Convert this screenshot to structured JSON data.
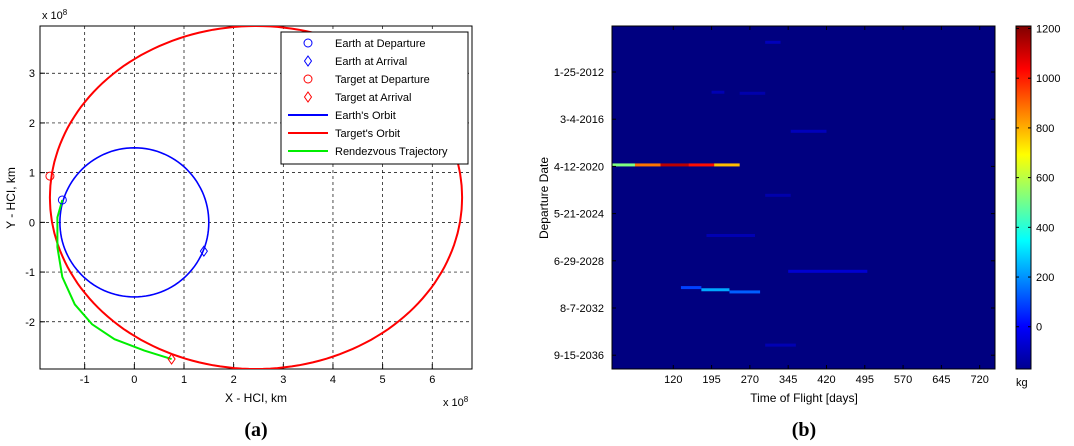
{
  "chart_data": [
    {
      "type": "line",
      "xlabel": "X - HCI, km",
      "ylabel": "Y - HCI, km",
      "x_multiplier": "x 10",
      "y_multiplier": "x 10",
      "exponent": "8",
      "xlim": [
        -1.9,
        6.8
      ],
      "ylim": [
        -2.95,
        3.95
      ],
      "xticks": [
        -1,
        0,
        1,
        2,
        3,
        4,
        5,
        6
      ],
      "yticks": [
        -2,
        -1,
        0,
        1,
        2,
        3
      ],
      "grid": true,
      "legend_position": "top-right",
      "legend": [
        {
          "label": "Earth at Departure",
          "marker": "circle",
          "color": "#0000ff"
        },
        {
          "label": "Earth at Arrival",
          "marker": "diamond",
          "color": "#0000ff"
        },
        {
          "label": "Target at Departure",
          "marker": "circle",
          "color": "#ff0000"
        },
        {
          "label": "Target at Arrival",
          "marker": "diamond",
          "color": "#ff0000"
        },
        {
          "label": "Earth's Orbit",
          "line": true,
          "color": "#0000ff"
        },
        {
          "label": "Target's Orbit",
          "line": true,
          "color": "#ff0000"
        },
        {
          "label": "Rendezvous Trajectory",
          "line": true,
          "color": "#00ee00"
        }
      ],
      "earth_orbit": {
        "center": [
          0,
          0
        ],
        "radius": 1.5
      },
      "target_orbit": {
        "center": [
          2.45,
          0.5
        ],
        "a": 4.15,
        "b": 3.45
      },
      "series": [
        {
          "name": "Earth's Orbit",
          "color": "#0000ff",
          "shape": "circle"
        },
        {
          "name": "Target's Orbit",
          "color": "#ff0000",
          "shape": "ellipse"
        },
        {
          "name": "Rendezvous Trajectory",
          "color": "#00ee00",
          "points": [
            [
              -1.45,
              0.45
            ],
            [
              -1.55,
              0.1
            ],
            [
              -1.55,
              -0.5
            ],
            [
              -1.45,
              -1.1
            ],
            [
              -1.2,
              -1.65
            ],
            [
              -0.85,
              -2.05
            ],
            [
              -0.4,
              -2.35
            ],
            [
              0.2,
              -2.58
            ],
            [
              0.75,
              -2.75
            ]
          ]
        }
      ],
      "markers": [
        {
          "name": "Earth at Departure",
          "x": -1.45,
          "y": 0.45,
          "shape": "circle",
          "color": "#0000ff"
        },
        {
          "name": "Earth at Arrival",
          "x": 1.4,
          "y": -0.58,
          "shape": "diamond",
          "color": "#0000ff"
        },
        {
          "name": "Target at Departure",
          "x": -1.7,
          "y": 0.93,
          "shape": "circle",
          "color": "#ff0000"
        },
        {
          "name": "Target at Arrival",
          "x": 0.75,
          "y": -2.75,
          "shape": "diamond",
          "color": "#ff0000"
        }
      ],
      "caption": "(a)"
    },
    {
      "type": "heatmap",
      "xlabel": "Time of Flight [days]",
      "ylabel": "Departure Date",
      "xlim": [
        0,
        750
      ],
      "xticks": [
        120,
        195,
        270,
        345,
        420,
        495,
        570,
        645,
        720
      ],
      "yticks": [
        "1-25-2012",
        "3-4-2016",
        "4-12-2020",
        "5-21-2024",
        "6-29-2028",
        "8-7-2032",
        "9-15-2036"
      ],
      "ylim": [
        2008.0,
        2039.6
      ],
      "colorbar": {
        "min": -170,
        "max": 1210,
        "ticks": [
          0,
          200,
          400,
          600,
          800,
          1000,
          1200
        ],
        "label": "kg"
      },
      "background_value": -170,
      "features": [
        {
          "y": 2009.5,
          "x_start": 300,
          "x_end": 330,
          "value": -90
        },
        {
          "y": 2014.1,
          "x_start": 195,
          "x_end": 220,
          "value": -100
        },
        {
          "y": 2014.2,
          "x_start": 250,
          "x_end": 300,
          "value": -110
        },
        {
          "y": 2017.7,
          "x_start": 350,
          "x_end": 420,
          "value": -90
        },
        {
          "y": 2020.8,
          "x_start": 0,
          "x_end": 45,
          "value": 520
        },
        {
          "y": 2020.8,
          "x_start": 45,
          "x_end": 95,
          "value": 880
        },
        {
          "y": 2020.8,
          "x_start": 95,
          "x_end": 150,
          "value": 1130
        },
        {
          "y": 2020.8,
          "x_start": 150,
          "x_end": 200,
          "value": 1020
        },
        {
          "y": 2020.8,
          "x_start": 200,
          "x_end": 250,
          "value": 780
        },
        {
          "y": 2023.6,
          "x_start": 300,
          "x_end": 350,
          "value": -110
        },
        {
          "y": 2027.3,
          "x_start": 185,
          "x_end": 280,
          "value": -100
        },
        {
          "y": 2030.6,
          "x_start": 345,
          "x_end": 500,
          "value": -60
        },
        {
          "y": 2032.1,
          "x_start": 135,
          "x_end": 175,
          "value": 90
        },
        {
          "y": 2032.3,
          "x_start": 175,
          "x_end": 230,
          "value": 230
        },
        {
          "y": 2032.5,
          "x_start": 230,
          "x_end": 290,
          "value": 130
        },
        {
          "y": 2037.4,
          "x_start": 300,
          "x_end": 360,
          "value": -100
        }
      ],
      "caption": "(b)"
    }
  ]
}
